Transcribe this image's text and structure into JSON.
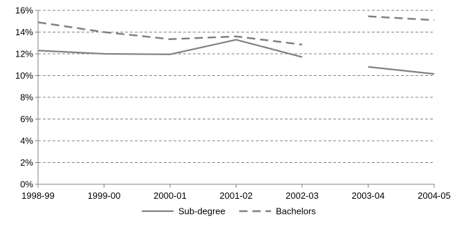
{
  "chart_data": {
    "type": "line",
    "title": "",
    "xlabel": "",
    "ylabel": "",
    "categories": [
      "1998-99",
      "1999-00",
      "2000-01",
      "2001-02",
      "2002-03",
      "2003-04",
      "2004-05"
    ],
    "ylim": [
      0,
      16
    ],
    "yticks": [
      "0%",
      "2%",
      "4%",
      "6%",
      "8%",
      "10%",
      "12%",
      "14%",
      "16%"
    ],
    "grid": true,
    "legend_position": "bottom",
    "series": [
      {
        "name": "Sub-degree",
        "style": "solid",
        "color": "#808080",
        "values": [
          12.3,
          12.0,
          11.95,
          13.3,
          11.7,
          null,
          null
        ],
        "segments": [
          {
            "from": "1998-99",
            "to": "2002-03"
          },
          {
            "from": "2003-04",
            "to": "2004-05",
            "start_value": 10.8,
            "end_value": 10.15
          }
        ]
      },
      {
        "name": "Bachelors",
        "style": "dashed",
        "color": "#808080",
        "values": [
          14.9,
          14.0,
          13.35,
          13.6,
          12.85,
          15.45,
          15.1
        ]
      }
    ]
  }
}
